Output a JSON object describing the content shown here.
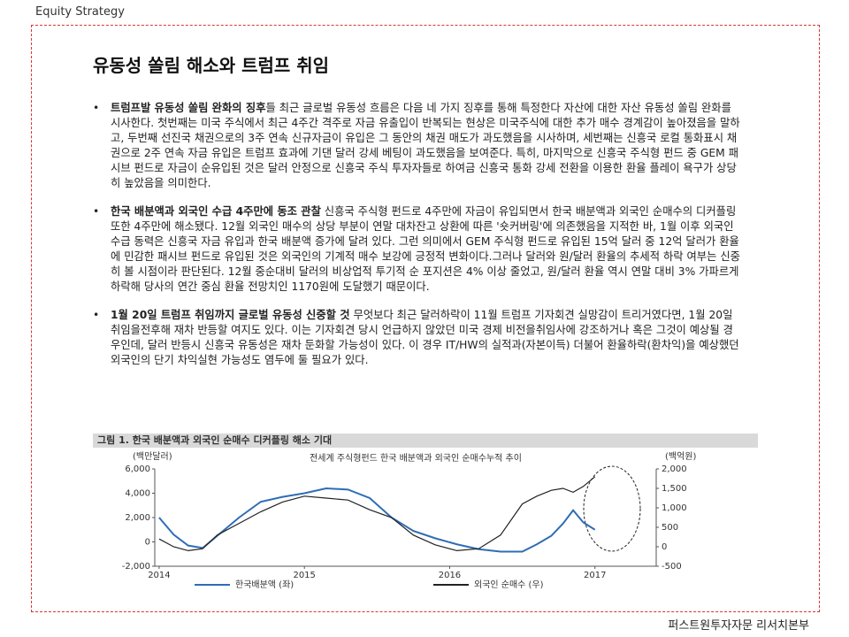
{
  "header": {
    "section": "Equity Strategy",
    "footer": "퍼스트원투자자문 리서치본부"
  },
  "title": "유동성 쏠림 해소와 트럼프 취임",
  "bullets": [
    {
      "lead": "트럼프발 유동성 쏠림 완화의 징후",
      "text": "들 최근 글로벌 유동성 흐름은 다음 네 가지 징후를 통해 특정한다 자산에 대한 자산 유동성 쏠림 완화를 시사한다. 첫번째는 미국 주식에서 최근 4주간 격주로 자금 유출입이 반복되는 현상은 미국주식에 대한 추가 매수 경계감이 높아졌음을 말하고, 두번째 선진국 채권으로의 3주 연속 신규자금이 유입은 그 동안의 채권 매도가 과도했음을 시사하며, 세번째는 신흥국 로컬 통화표시 채권으로 2주 연속 자금 유입은 트럼프 효과에 기댄 달러 강세 베팅이 과도했음을 보여준다. 특히, 마지막으로 신흥국 주식형 펀드 중 GEM 패시브 펀드로 자금이 순유입된 것은 달러 안정으로 신흥국 주식 투자자들로 하여금 신흥국 통화 강세 전환을 이용한 환율 플레이 욕구가 상당히 높았음을 의미한다."
    },
    {
      "lead": "한국 배분액과 외국인 수급 4주만에 동조 관찰",
      "text": " 신흥국 주식형 펀드로 4주만에 자금이 유입되면서 한국 배분액과 외국인 순매수의 디커플링 또한 4주만에 해소됐다. 12월 외국인 매수의 상당 부분이 연말 대차잔고 상환에 따른 '숏커버링'에 의존했음을 지적한 바, 1월 이후 외국인 수급 동력은 신흥국 자금 유입과 한국 배분액 증가에 달려 있다. 그런 의미에서 GEM 주식형 펀드로 유입된 15억 달러 중 12억 달러가 환율에 민감한 패시브 펀드로 유입된 것은 외국인의 기계적 매수 보강에 긍정적 변화이다.그러나 달러와 원/달러 환율의 추세적 하락 여부는 신중히 볼 시점이라 판단된다. 12월 중순대비 달러의 비상업적 투기적 순 포지션은 4% 이상 줄었고, 원/달러 환율 역시 연말 대비 3% 가파르게 하락해 당사의 연간 중심 환율 전망치인 1170원에 도달했기 때문이다."
    },
    {
      "lead": "1월 20일 트럼프 취임까지 글로벌 유동성 신중할 것",
      "text": " 무엇보다 최근 달러하락이 11월 트럼프 기자회견 실망감이 트리거였다면, 1월 20일 취임을전후해 재차 반등할 여지도 있다. 이는 기자회견 당시 언급하지 않았던 미국 경제 비전을취임사에 강조하거나 혹은 그것이 예상될 경우인데, 달러 반등시 신흥국 유동성은 재차 둔화할 가능성이 있다. 이 경우 IT/HW의 실적과(자본이득) 더불어 환율하락(환차익)을 예상했던 외국인의 단기 차익실현 가능성도 염두에 둘 필요가 있다."
    }
  ],
  "chart_data": {
    "type": "line",
    "caption": "그림 1. 한국 배분액과 외국인 순매수 디커플링 해소 기대",
    "title": "전세계 주식형펀드 한국 배분액과 외국인 순매수누적 추이",
    "y_label": "(백만달러)",
    "y2_label": "(백억원)",
    "x": [
      2014.0,
      2014.1,
      2014.2,
      2014.3,
      2014.4,
      2014.55,
      2014.7,
      2014.85,
      2015.0,
      2015.15,
      2015.3,
      2015.45,
      2015.6,
      2015.75,
      2015.9,
      2016.05,
      2016.2,
      2016.35,
      2016.5,
      2016.6,
      2016.7,
      2016.78,
      2016.85,
      2016.92,
      2017.0
    ],
    "xlim": [
      2013.97,
      2017.3
    ],
    "xticks": [
      2014,
      2015,
      2016,
      2017
    ],
    "ylim": [
      -2000,
      6000
    ],
    "yticks": [
      {
        "value": -2000,
        "label": "-2,000"
      },
      0,
      {
        "value": 2000,
        "label": "2,000"
      },
      {
        "value": 4000,
        "label": "4,000"
      },
      {
        "value": 6000,
        "label": "6,000"
      }
    ],
    "y2lim": [
      -500,
      2000
    ],
    "y2ticks": [
      -500,
      0,
      500,
      {
        "value": 1000,
        "label": "1,000"
      },
      {
        "value": 1500,
        "label": "1,500"
      },
      {
        "value": 2000,
        "label": "2,000"
      }
    ],
    "series": [
      {
        "name": "한국배분액 (좌)",
        "color": "#2e6db5",
        "axis": "y",
        "values": [
          2000,
          600,
          -300,
          -500,
          500,
          2000,
          3300,
          3700,
          4000,
          4400,
          4300,
          3600,
          2000,
          900,
          300,
          -200,
          -600,
          -800,
          -800,
          -200,
          500,
          1500,
          2600,
          1600,
          1000
        ]
      },
      {
        "name": "외국인 순매수 (우)",
        "color": "#222222",
        "axis": "y2",
        "values": [
          200,
          0,
          -100,
          -50,
          300,
          600,
          900,
          1150,
          1300,
          1250,
          1200,
          950,
          750,
          300,
          50,
          -100,
          -50,
          300,
          1100,
          1300,
          1450,
          1500,
          1400,
          1550,
          1800
        ]
      }
    ]
  }
}
